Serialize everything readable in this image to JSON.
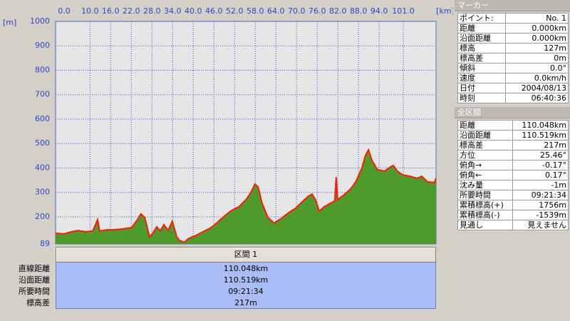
{
  "chart_data": {
    "type": "area",
    "x_label": "[km]",
    "y_label": "[m]",
    "xlim": [
      0,
      110.519
    ],
    "ylim": [
      89,
      1000
    ],
    "xticks": [
      {
        "value": 0,
        "label": "0.0"
      },
      {
        "value": 10,
        "label": "10.0"
      },
      {
        "value": 16,
        "label": "16.0"
      },
      {
        "value": 22,
        "label": "22.0"
      },
      {
        "value": 28,
        "label": "28.0"
      },
      {
        "value": 34,
        "label": "34.0"
      },
      {
        "value": 40,
        "label": "40.0"
      },
      {
        "value": 46,
        "label": "46.0"
      },
      {
        "value": 52,
        "label": "52.0"
      },
      {
        "value": 58,
        "label": "58.0"
      },
      {
        "value": 64,
        "label": "64.0"
      },
      {
        "value": 70,
        "label": "70.0"
      },
      {
        "value": 76,
        "label": "76.0"
      },
      {
        "value": 82,
        "label": "82.0"
      },
      {
        "value": 88,
        "label": "88.0"
      },
      {
        "value": 94,
        "label": "94.0"
      },
      {
        "value": 101,
        "label": "101.0"
      }
    ],
    "yticks": [
      89,
      200,
      300,
      400,
      500,
      600,
      700,
      800,
      900,
      1000
    ],
    "grid": true,
    "line_color": "#ff1a00",
    "fill_color": "#4f9a2c",
    "x": [
      0,
      2.5,
      4.6,
      6.6,
      8.7,
      10.8,
      12.2,
      12.8,
      14.9,
      17.0,
      19.0,
      22.1,
      23.6,
      24.8,
      25.9,
      27.3,
      28.4,
      29.4,
      30.4,
      31.5,
      32.7,
      33.9,
      35.2,
      36.0,
      37.3,
      38.7,
      40.8,
      42.8,
      44.9,
      47.0,
      49.0,
      51.1,
      53.2,
      55.3,
      56.7,
      57.9,
      58.8,
      60.0,
      61.7,
      63.5,
      65.6,
      67.7,
      69.7,
      71.8,
      73.5,
      74.5,
      75.5,
      76.6,
      78.0,
      80.1,
      81.1,
      81.5,
      81.9,
      83.6,
      85.7,
      87.3,
      89.0,
      90.0,
      90.9,
      91.9,
      93.5,
      95.6,
      97.3,
      98.1,
      99.3,
      100.8,
      102.9,
      105.0,
      106.4,
      108.0,
      110.1,
      110.5
    ],
    "values": [
      133,
      130,
      139,
      144,
      139,
      142,
      188,
      142,
      147,
      147,
      150,
      156,
      185,
      212,
      197,
      118,
      136,
      159,
      142,
      168,
      144,
      182,
      118,
      104,
      95,
      112,
      124,
      139,
      153,
      177,
      203,
      226,
      241,
      270,
      299,
      334,
      323,
      255,
      197,
      174,
      194,
      217,
      235,
      264,
      285,
      293,
      270,
      223,
      241,
      258,
      264,
      363,
      270,
      288,
      314,
      346,
      401,
      451,
      474,
      431,
      393,
      387,
      404,
      410,
      387,
      372,
      366,
      358,
      366,
      343,
      340,
      358
    ]
  },
  "section": {
    "header": "区間 1",
    "rows": [
      [
        "直線距離",
        "110.048km"
      ],
      [
        "沿面距離",
        "110.519km"
      ],
      [
        "所要時間",
        "09:21:34"
      ],
      [
        "標高差",
        "217m"
      ]
    ]
  },
  "marker_panel": {
    "title": "マーカー",
    "rows": [
      [
        "ポイント:",
        "No. 1"
      ],
      [
        "距離",
        "0.000km"
      ],
      [
        "沿面距離",
        "0.000km"
      ],
      [
        "標高",
        "127m"
      ],
      [
        "標高差",
        "0m"
      ],
      [
        "傾斜",
        "0.0°"
      ],
      [
        "速度",
        "0.0km/h"
      ],
      [
        "日付",
        "2004/08/13"
      ],
      [
        "時刻",
        "06:40:36"
      ]
    ]
  },
  "total_panel": {
    "title": "全区間",
    "rows": [
      [
        "距離",
        "110.048km"
      ],
      [
        "沿面距離",
        "110.519km"
      ],
      [
        "標高差",
        "217m"
      ],
      [
        "方位",
        "25.46°"
      ],
      [
        "俯角→",
        "-0.17°"
      ],
      [
        "俯角←",
        "0.17°"
      ],
      [
        "沈み量",
        "-1m"
      ],
      [
        "所要時間",
        "09:21:34"
      ],
      [
        "累積標高(+)",
        "1756m"
      ],
      [
        "累積標高(-)",
        "-1539m"
      ],
      [
        "見通し",
        "見えません"
      ]
    ]
  }
}
